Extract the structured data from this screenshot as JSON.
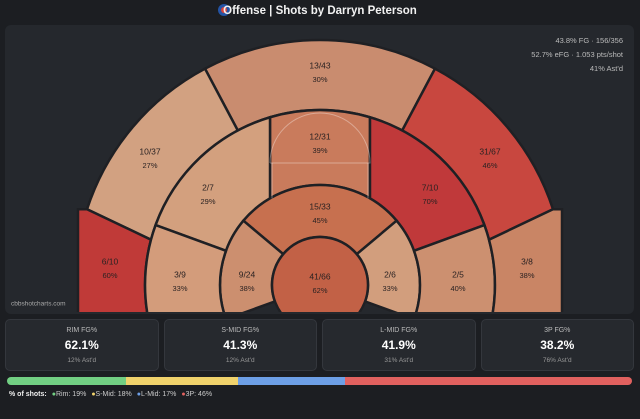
{
  "header": {
    "title": "Offense | Shots by Darryn Peterson"
  },
  "summary": [
    "43.8% FG · 156/356",
    "52.7% eFG · 1.053 pts/shot",
    "41% Ast'd"
  ],
  "watermark": "cbbshotcharts.com",
  "zones": [
    {
      "label": "13/43",
      "pct": "30%",
      "color": "#c98c6f"
    },
    {
      "label": "10/37",
      "pct": "27%",
      "color": "#d2a181"
    },
    {
      "label": "31/67",
      "pct": "46%",
      "color": "#c8473f"
    },
    {
      "label": "12/31",
      "pct": "39%",
      "color": "#c97b5c"
    },
    {
      "label": "2/7",
      "pct": "29%",
      "color": "#d3a07e"
    },
    {
      "label": "7/10",
      "pct": "70%",
      "color": "#c0393a"
    },
    {
      "label": "15/33",
      "pct": "45%",
      "color": "#c7704f"
    },
    {
      "label": "9/24",
      "pct": "38%",
      "color": "#cc8f6f"
    },
    {
      "label": "2/6",
      "pct": "33%",
      "color": "#d29e7d"
    },
    {
      "label": "41/66",
      "pct": "62%",
      "color": "#c26146"
    },
    {
      "label": "6/10",
      "pct": "60%",
      "color": "#c03a38"
    },
    {
      "label": "3/9",
      "pct": "33%",
      "color": "#d39c7b"
    },
    {
      "label": "2/5",
      "pct": "40%",
      "color": "#cc9070"
    },
    {
      "label": "3/8",
      "pct": "38%",
      "color": "#c98565"
    }
  ],
  "cards": [
    {
      "title": "RIM FG%",
      "value": "62.1%",
      "sub": "12% Ast'd"
    },
    {
      "title": "S-MID FG%",
      "value": "41.3%",
      "sub": "12% Ast'd"
    },
    {
      "title": "L-MID FG%",
      "value": "41.9%",
      "sub": "31% Ast'd"
    },
    {
      "title": "3P FG%",
      "value": "38.2%",
      "sub": "76% Ast'd"
    }
  ],
  "distribution": {
    "label": "% of shots:",
    "items": [
      {
        "label": "Rim: 19%",
        "value": 19,
        "color": "#72cf83"
      },
      {
        "label": "S-Mid: 18%",
        "value": 18,
        "color": "#f0d26c"
      },
      {
        "label": "L-Mid: 17%",
        "value": 17,
        "color": "#6d9fe6"
      },
      {
        "label": "3P: 46%",
        "value": 46,
        "color": "#e1615f"
      }
    ]
  }
}
